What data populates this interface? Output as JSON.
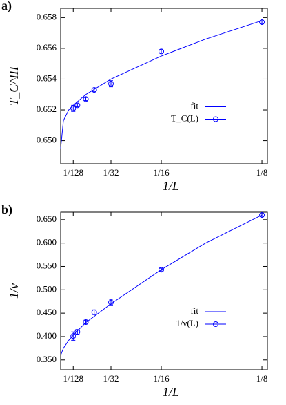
{
  "chart_data": [
    {
      "type": "line",
      "panel_label": "a)",
      "x_label": "1/L",
      "y_label": "T_C^III",
      "xlim": [
        0,
        0.1284
      ],
      "ylim": [
        0.6485,
        0.6586
      ],
      "xticks": [
        {
          "value": 0.0078125,
          "label": "1/128"
        },
        {
          "value": 0.03125,
          "label": "1/32"
        },
        {
          "value": 0.0625,
          "label": "1/16"
        },
        {
          "value": 0.125,
          "label": "1/8"
        }
      ],
      "yticks": [
        {
          "value": 0.65,
          "label": "0.650"
        },
        0.652,
        0.654,
        0.656,
        0.658
      ],
      "legend": "center",
      "series": [
        {
          "name": "fit",
          "color": "#0000ff",
          "x": [
            0,
            0.0017,
            0.005,
            0.0078125,
            0.015625,
            0.03125,
            0.0625,
            0.09,
            0.125
          ],
          "values": [
            0.6495,
            0.6513,
            0.652,
            0.6523,
            0.653,
            0.654,
            0.6555,
            0.6566,
            0.6578
          ]
        },
        {
          "name": "T_C(L)",
          "color": "#0000ff",
          "x": [
            0.0078125,
            0.0104167,
            0.015625,
            0.0208333,
            0.03125,
            0.0625,
            0.125
          ],
          "values": [
            0.6521,
            0.6523,
            0.6527,
            0.6533,
            0.6537,
            0.6558,
            0.6577
          ],
          "errors": [
            0.0002,
            0.0001,
            0.0001,
            0.0001,
            0.0002,
            0.0001,
            0.0001
          ]
        }
      ]
    },
    {
      "type": "line",
      "panel_label": "b)",
      "x_label": "1/L",
      "y_label": "1/ν",
      "xlim": [
        0,
        0.1284
      ],
      "ylim": [
        0.329,
        0.666
      ],
      "xticks": [
        {
          "value": 0.0078125,
          "label": "1/128"
        },
        {
          "value": 0.03125,
          "label": "1/32"
        },
        {
          "value": 0.0625,
          "label": "1/16"
        },
        {
          "value": 0.125,
          "label": "1/8"
        }
      ],
      "yticks": [
        {
          "value": 0.35,
          "label": "0.350"
        },
        {
          "value": 0.4,
          "label": "0.400"
        },
        {
          "value": 0.45,
          "label": "0.450"
        },
        {
          "value": 0.5,
          "label": "0.500"
        },
        {
          "value": 0.55,
          "label": "0.550"
        },
        {
          "value": 0.6,
          "label": "0.600"
        },
        {
          "value": 0.65,
          "label": "0.650"
        }
      ],
      "legend": "center",
      "series": [
        {
          "name": "fit",
          "color": "#0000ff",
          "x": [
            0,
            0.0017,
            0.005,
            0.0078125,
            0.015625,
            0.03125,
            0.0625,
            0.09,
            0.125
          ],
          "values": [
            0.36,
            0.375,
            0.392,
            0.403,
            0.43,
            0.47,
            0.543,
            0.6,
            0.66
          ]
        },
        {
          "name": "1/ν(L)",
          "color": "#0000ff",
          "x": [
            0.0078125,
            0.0104167,
            0.015625,
            0.0208333,
            0.03125,
            0.0625,
            0.125
          ],
          "values": [
            0.401,
            0.41,
            0.431,
            0.452,
            0.473,
            0.543,
            0.66
          ],
          "errors": [
            0.009,
            0.005,
            0.004,
            0.005,
            0.007,
            0.003,
            0.003
          ]
        }
      ]
    }
  ]
}
